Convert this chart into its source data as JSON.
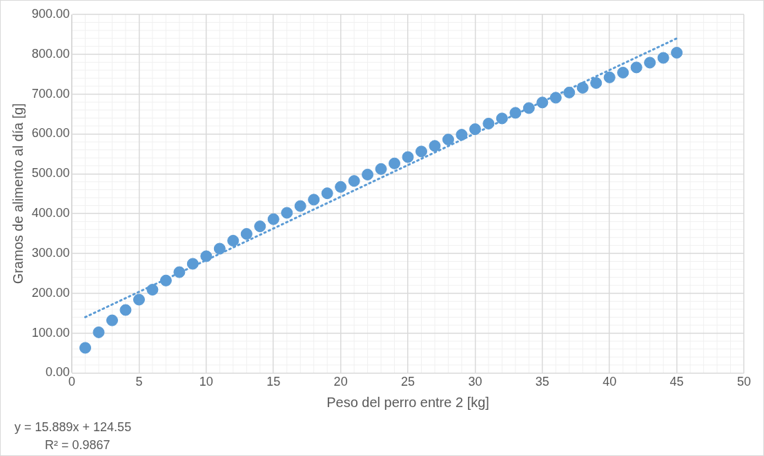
{
  "chart_data": {
    "type": "scatter",
    "xlabel": "Peso del perro entre 2 [kg]",
    "ylabel": "Gramos de alimento al día [g]",
    "x": [
      1,
      2,
      3,
      4,
      5,
      6,
      7,
      8,
      9,
      10,
      11,
      12,
      13,
      14,
      15,
      16,
      17,
      18,
      19,
      20,
      21,
      22,
      23,
      24,
      25,
      26,
      27,
      28,
      29,
      30,
      31,
      32,
      33,
      34,
      35,
      36,
      37,
      38,
      39,
      40,
      41,
      42,
      43,
      44,
      45
    ],
    "series": [
      {
        "color": "#5b9bd5",
        "marker": "circle",
        "values": [
          63,
          102,
          132,
          158,
          184,
          209,
          232,
          253,
          274,
          293,
          312,
          332,
          349,
          368,
          386,
          402,
          419,
          435,
          451,
          467,
          482,
          498,
          512,
          526,
          542,
          556,
          570,
          586,
          598,
          612,
          626,
          639,
          653,
          665,
          679,
          691,
          704,
          716,
          728,
          742,
          754,
          767,
          779,
          791,
          804
        ]
      },
      {
        "type": "line",
        "color": "#5b9bd5",
        "line_style": "dotted",
        "marker": "none",
        "x": [
          1,
          45
        ],
        "values": [
          140,
          840
        ]
      }
    ],
    "xlim": [
      0,
      50
    ],
    "xticks": [
      0,
      5,
      10,
      15,
      20,
      25,
      30,
      35,
      40,
      45,
      50
    ],
    "ylim": [
      0,
      900
    ],
    "yticks": [
      {
        "value": 0,
        "label": "0.00"
      },
      {
        "value": 100,
        "label": "100.00"
      },
      {
        "value": 200,
        "label": "200.00"
      },
      {
        "value": 300,
        "label": "300.00"
      },
      {
        "value": 400,
        "label": "400.00"
      },
      {
        "value": 500,
        "label": "500.00"
      },
      {
        "value": 600,
        "label": "600.00"
      },
      {
        "value": 700,
        "label": "700.00"
      },
      {
        "value": 800,
        "label": "800.00"
      },
      {
        "value": 900,
        "label": "900.00"
      }
    ],
    "grid": true,
    "legend": false,
    "annotations": [
      "y = 15.889x + 124.55",
      "R² = 0.9867"
    ]
  }
}
